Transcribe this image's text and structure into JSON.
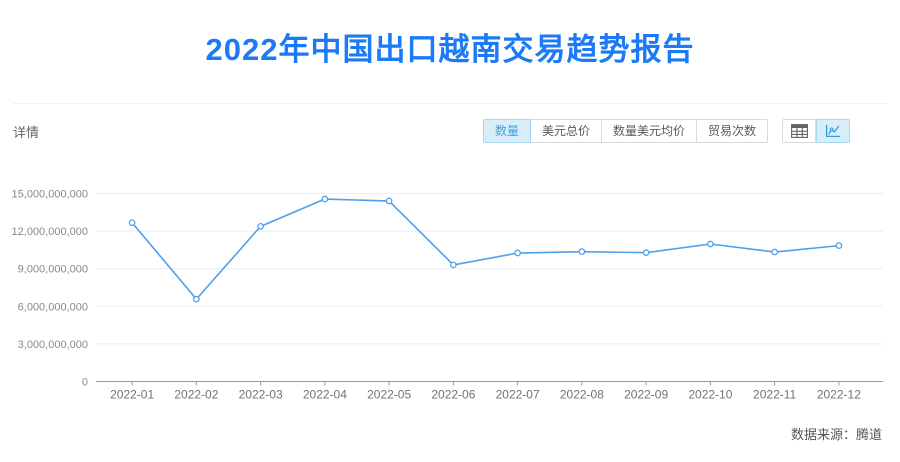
{
  "title": "2022年中国出口越南交易趋势报告",
  "section": {
    "label": "详情"
  },
  "tabs": [
    {
      "label": "数量",
      "selected": true
    },
    {
      "label": "美元总价",
      "selected": false
    },
    {
      "label": "数量美元均价",
      "selected": false
    },
    {
      "label": "贸易次数",
      "selected": false
    }
  ],
  "view_toggles": [
    {
      "icon": "table-icon",
      "selected": false
    },
    {
      "icon": "line-chart-icon",
      "selected": true
    }
  ],
  "footer": {
    "source": "数据来源：腾道"
  },
  "colors": {
    "title": "#1a7af8",
    "line": "#4f9fec",
    "point_fill": "#ffffff",
    "grid": "#e9eef5",
    "axis": "#95989d",
    "tab_active_bg": "#d9edf9",
    "tab_active_text": "#3aa2de",
    "tab_active_border": "#a8d8f0",
    "icon_gray": "#606266",
    "icon_blue": "#2f9fdb"
  },
  "chart_data": {
    "type": "line",
    "title": "2022年中国出口越南交易趋势报告",
    "categories": [
      "2022-01",
      "2022-02",
      "2022-03",
      "2022-04",
      "2022-05",
      "2022-06",
      "2022-07",
      "2022-08",
      "2022-09",
      "2022-10",
      "2022-11",
      "2022-12"
    ],
    "series": [
      {
        "name": "数量",
        "values": [
          12670000000,
          6570000000,
          12380000000,
          14560000000,
          14400000000,
          9300000000,
          10250000000,
          10360000000,
          10280000000,
          10970000000,
          10330000000,
          10840000000
        ]
      }
    ],
    "xlabel": "",
    "ylabel": "",
    "ylim": [
      0,
      15000000000
    ],
    "ytick_step": 3000000000,
    "grid": true,
    "legend": "none",
    "point_style": "hollow-circle"
  }
}
